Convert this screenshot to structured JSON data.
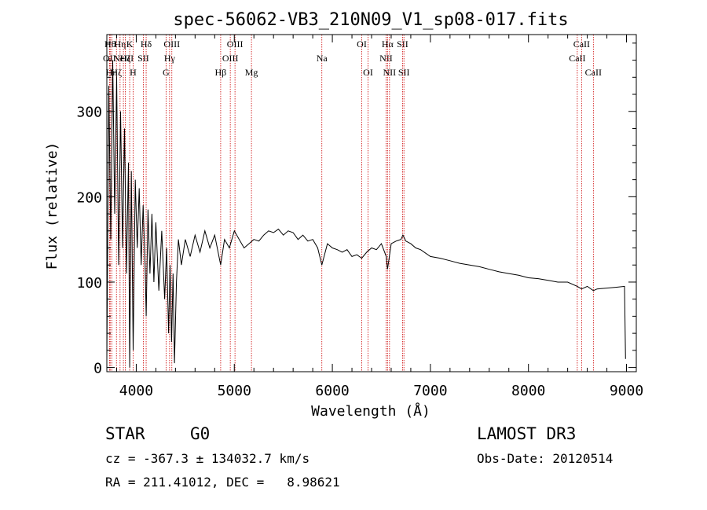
{
  "chart_data": {
    "type": "line",
    "title": "spec-56062-VB3_210N09_V1_sp08-017.fits",
    "xlabel": "Wavelength (Å)",
    "ylabel": "Flux (relative)",
    "xlim": [
      3700,
      9100
    ],
    "ylim": [
      -5,
      390
    ],
    "x_ticks": [
      4000,
      5000,
      6000,
      7000,
      8000,
      9000
    ],
    "y_ticks": [
      0,
      100,
      200,
      300
    ],
    "series": [
      {
        "name": "flux",
        "points": [
          [
            3700,
            10
          ],
          [
            3720,
            330
          ],
          [
            3740,
            150
          ],
          [
            3760,
            360
          ],
          [
            3780,
            180
          ],
          [
            3800,
            340
          ],
          [
            3820,
            120
          ],
          [
            3840,
            300
          ],
          [
            3860,
            140
          ],
          [
            3880,
            280
          ],
          [
            3900,
            110
          ],
          [
            3920,
            240
          ],
          [
            3933,
            0
          ],
          [
            3950,
            230
          ],
          [
            3968,
            20
          ],
          [
            3990,
            220
          ],
          [
            4010,
            140
          ],
          [
            4030,
            210
          ],
          [
            4050,
            120
          ],
          [
            4070,
            190
          ],
          [
            4090,
            120
          ],
          [
            4101,
            60
          ],
          [
            4120,
            185
          ],
          [
            4140,
            110
          ],
          [
            4160,
            180
          ],
          [
            4180,
            100
          ],
          [
            4200,
            170
          ],
          [
            4230,
            90
          ],
          [
            4260,
            160
          ],
          [
            4290,
            80
          ],
          [
            4310,
            140
          ],
          [
            4330,
            40
          ],
          [
            4345,
            120
          ],
          [
            4360,
            30
          ],
          [
            4375,
            110
          ],
          [
            4390,
            5
          ],
          [
            4410,
            100
          ],
          [
            4430,
            150
          ],
          [
            4460,
            120
          ],
          [
            4500,
            150
          ],
          [
            4550,
            130
          ],
          [
            4600,
            155
          ],
          [
            4650,
            135
          ],
          [
            4700,
            160
          ],
          [
            4750,
            140
          ],
          [
            4800,
            155
          ],
          [
            4861,
            120
          ],
          [
            4900,
            150
          ],
          [
            4950,
            140
          ],
          [
            5000,
            160
          ],
          [
            5050,
            150
          ],
          [
            5100,
            140
          ],
          [
            5150,
            145
          ],
          [
            5200,
            150
          ],
          [
            5250,
            148
          ],
          [
            5300,
            155
          ],
          [
            5350,
            160
          ],
          [
            5400,
            158
          ],
          [
            5450,
            162
          ],
          [
            5500,
            155
          ],
          [
            5550,
            160
          ],
          [
            5600,
            158
          ],
          [
            5650,
            150
          ],
          [
            5700,
            155
          ],
          [
            5750,
            148
          ],
          [
            5800,
            150
          ],
          [
            5850,
            140
          ],
          [
            5893,
            120
          ],
          [
            5950,
            145
          ],
          [
            6000,
            140
          ],
          [
            6050,
            138
          ],
          [
            6100,
            135
          ],
          [
            6150,
            138
          ],
          [
            6200,
            130
          ],
          [
            6250,
            132
          ],
          [
            6300,
            128
          ],
          [
            6350,
            135
          ],
          [
            6400,
            140
          ],
          [
            6450,
            138
          ],
          [
            6500,
            145
          ],
          [
            6550,
            130
          ],
          [
            6563,
            115
          ],
          [
            6600,
            145
          ],
          [
            6650,
            148
          ],
          [
            6700,
            150
          ],
          [
            6720,
            155
          ],
          [
            6750,
            148
          ],
          [
            6800,
            145
          ],
          [
            6850,
            140
          ],
          [
            6900,
            138
          ],
          [
            7000,
            130
          ],
          [
            7100,
            128
          ],
          [
            7200,
            125
          ],
          [
            7300,
            122
          ],
          [
            7400,
            120
          ],
          [
            7500,
            118
          ],
          [
            7600,
            115
          ],
          [
            7700,
            112
          ],
          [
            7800,
            110
          ],
          [
            7900,
            108
          ],
          [
            8000,
            105
          ],
          [
            8100,
            104
          ],
          [
            8200,
            102
          ],
          [
            8300,
            100
          ],
          [
            8400,
            100
          ],
          [
            8498,
            95
          ],
          [
            8542,
            92
          ],
          [
            8600,
            95
          ],
          [
            8662,
            90
          ],
          [
            8700,
            92
          ],
          [
            8800,
            93
          ],
          [
            8900,
            94
          ],
          [
            8980,
            95
          ],
          [
            8990,
            10
          ]
        ]
      }
    ],
    "line_markers": [
      {
        "wave": 3727,
        "label": "OII",
        "row": 2
      },
      {
        "wave": 3734,
        "label": "Hθ",
        "row": 1
      },
      {
        "wave": 3750,
        "label": "Hη",
        "row": 3
      },
      {
        "wave": 3798,
        "label": "Hζ",
        "row": 3
      },
      {
        "wave": 3835,
        "label": "Hη",
        "row": 1
      },
      {
        "wave": 3869,
        "label": "NeIII",
        "row": 2
      },
      {
        "wave": 3889,
        "label": "Hζ",
        "row": 2
      },
      {
        "wave": 3933,
        "label": "K",
        "row": 1
      },
      {
        "wave": 3968,
        "label": "H",
        "row": 3
      },
      {
        "wave": 4072,
        "label": "SII",
        "row": 2
      },
      {
        "wave": 4101,
        "label": "Hδ",
        "row": 1
      },
      {
        "wave": 4304,
        "label": "G",
        "row": 3
      },
      {
        "wave": 4340,
        "label": "Hγ",
        "row": 2
      },
      {
        "wave": 4363,
        "label": "OIII",
        "row": 1
      },
      {
        "wave": 4861,
        "label": "Hβ",
        "row": 3
      },
      {
        "wave": 4959,
        "label": "OIII",
        "row": 2
      },
      {
        "wave": 5007,
        "label": "OIII",
        "row": 1
      },
      {
        "wave": 5175,
        "label": "Mg",
        "row": 3
      },
      {
        "wave": 5893,
        "label": "Na",
        "row": 2
      },
      {
        "wave": 6300,
        "label": "OI",
        "row": 1
      },
      {
        "wave": 6364,
        "label": "OI",
        "row": 3
      },
      {
        "wave": 6548,
        "label": "NII",
        "row": 2
      },
      {
        "wave": 6563,
        "label": "Hα",
        "row": 1
      },
      {
        "wave": 6583,
        "label": "NII",
        "row": 3
      },
      {
        "wave": 6716,
        "label": "SII",
        "row": 1
      },
      {
        "wave": 6730,
        "label": "SII",
        "row": 3
      },
      {
        "wave": 8498,
        "label": "CaII",
        "row": 2
      },
      {
        "wave": 8542,
        "label": "CaII",
        "row": 1
      },
      {
        "wave": 8662,
        "label": "CaII",
        "row": 3
      }
    ],
    "marker_color": "#cc0000"
  },
  "info": {
    "object_class": "STAR",
    "subclass": "G0",
    "survey": "LAMOST DR3",
    "redshift_line": "cz = -367.3 ± 134032.7 km/s",
    "obs_date_line": "Obs-Date: 20120514",
    "coords_line": "RA = 211.41012, DEC =   8.98621"
  }
}
